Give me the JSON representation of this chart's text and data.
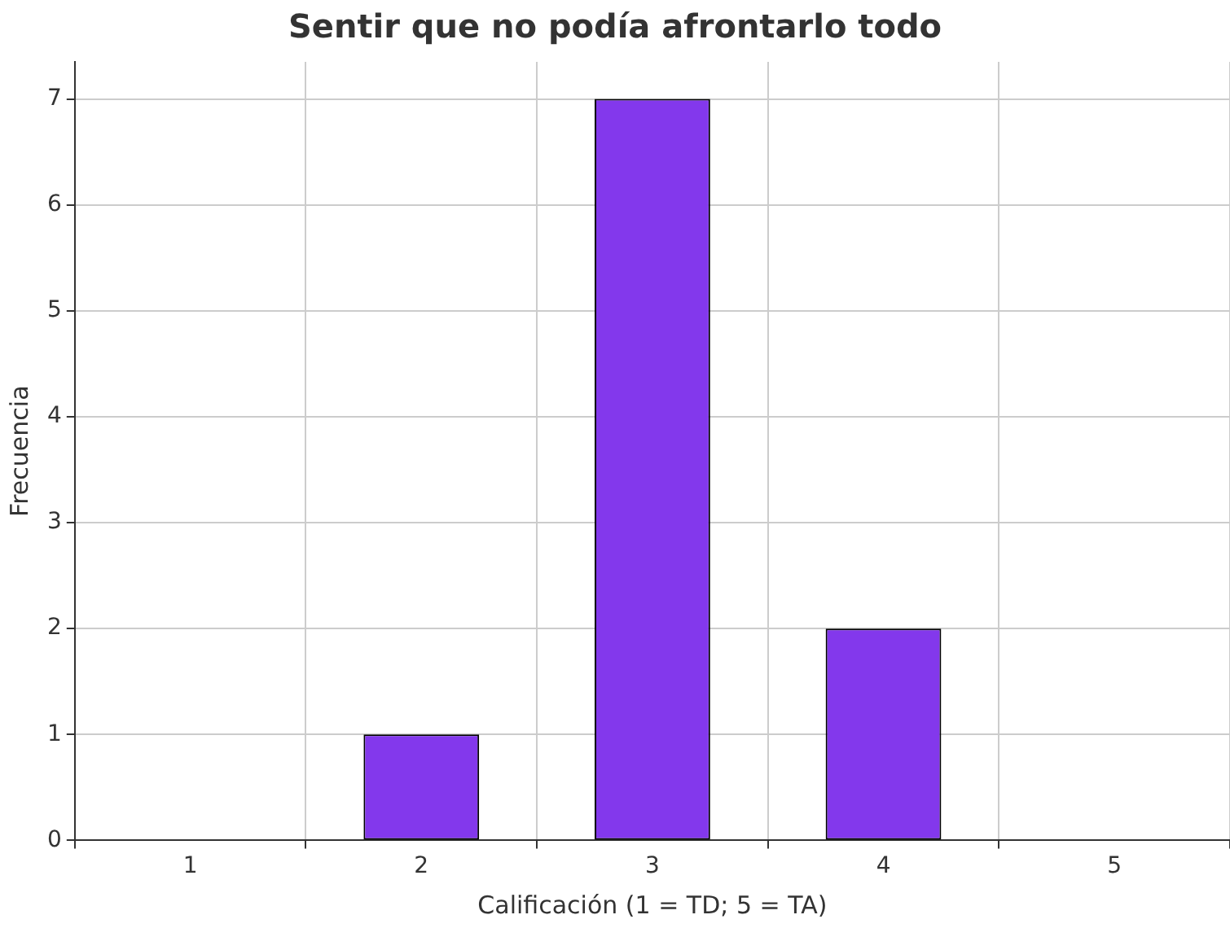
{
  "chart_data": {
    "type": "bar",
    "title": "Sentir que no podía afrontarlo todo",
    "xlabel": "Calificación (1 = TD; 5 = TA)",
    "ylabel": "Frecuencia",
    "categories": [
      "1",
      "2",
      "3",
      "4",
      "5"
    ],
    "values": [
      0,
      1,
      7,
      2,
      0
    ],
    "color": "#8338ec",
    "ylim": [
      0,
      7.35
    ],
    "yticks": [
      0,
      1,
      2,
      3,
      4,
      5,
      6,
      7
    ],
    "grid": true
  }
}
